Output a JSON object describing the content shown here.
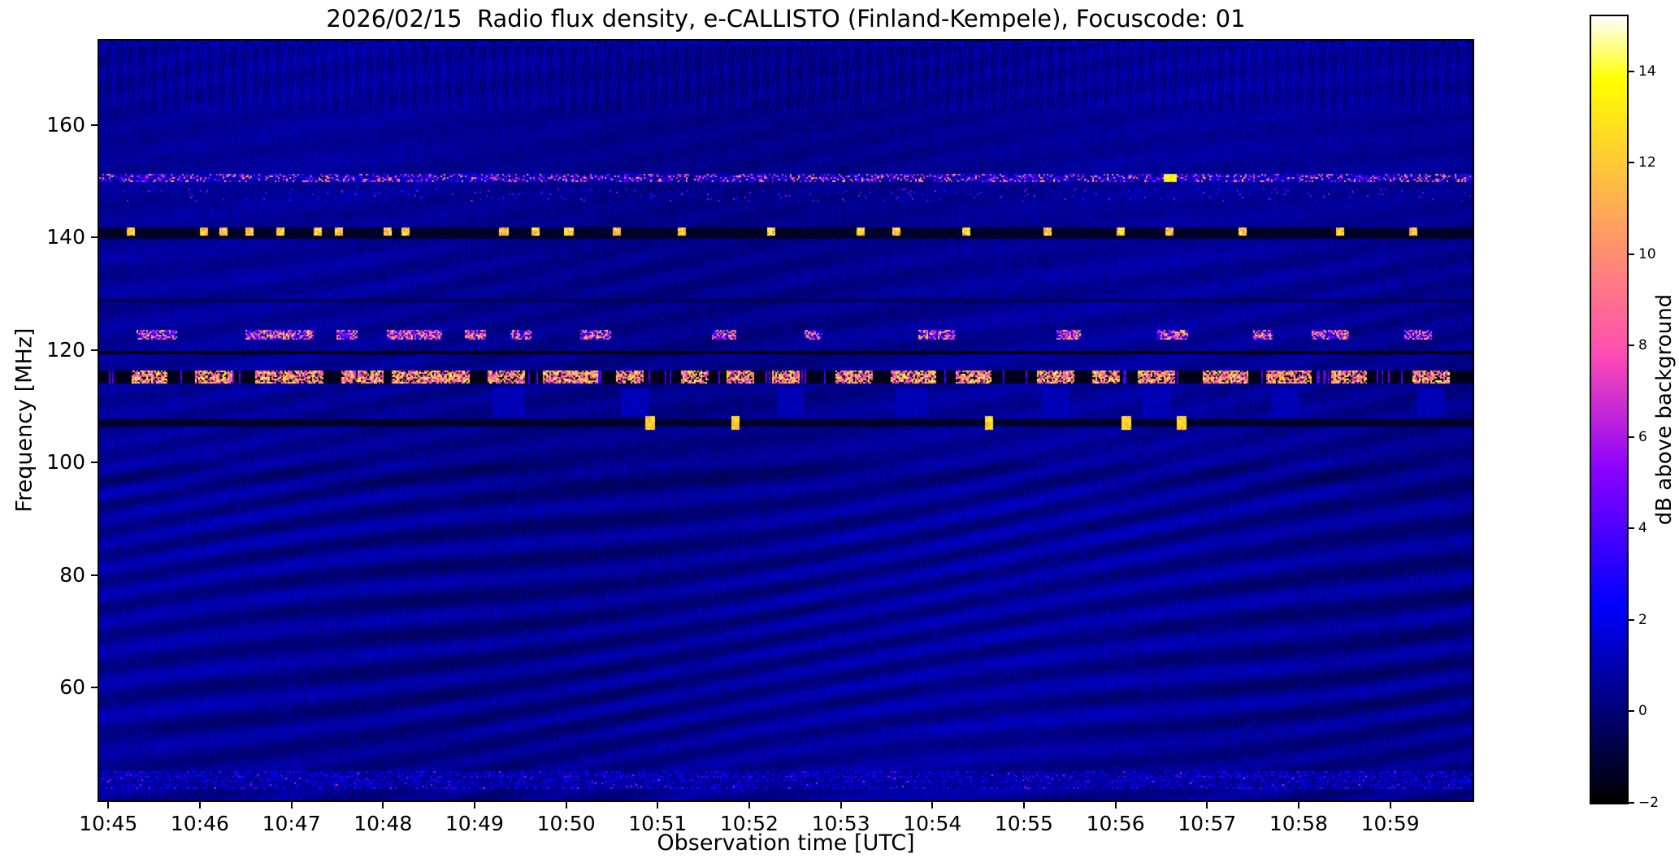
{
  "chart_data": {
    "type": "heatmap",
    "title": "2026/02/15  Radio flux density, e-CALLISTO (Finland-Kempele), Focuscode: 01",
    "xlabel": "Observation time [UTC]",
    "ylabel": "Frequency [MHz]",
    "x_ticks": [
      "10:45",
      "10:46",
      "10:47",
      "10:48",
      "10:49",
      "10:50",
      "10:51",
      "10:52",
      "10:53",
      "10:54",
      "10:55",
      "10:56",
      "10:57",
      "10:58",
      "10:59"
    ],
    "x_tick_minutes": [
      0,
      1,
      2,
      3,
      4,
      5,
      6,
      7,
      8,
      9,
      10,
      11,
      12,
      13,
      14
    ],
    "time_left_offset_min": -0.1,
    "time_span_min": 15.0,
    "y_ticks": [
      160,
      140,
      120,
      100,
      80,
      60
    ],
    "y_range_mhz": [
      40,
      175
    ],
    "grid": false,
    "background_level_db": 0.5,
    "colorbar": {
      "label": "dB above background",
      "ticks": [
        14,
        12,
        10,
        8,
        6,
        4,
        2,
        0,
        -2
      ],
      "range": [
        -2,
        15.2
      ],
      "colormap": "gnuplot2"
    },
    "features": [
      {
        "name": "upper-vertical-striping",
        "freq_mhz": [
          163,
          175
        ],
        "style": "vertical-striping",
        "level_db": [
          0,
          1.5
        ]
      },
      {
        "name": "rfi-line-150mhz",
        "freq_mhz": [
          149.9,
          151.3
        ],
        "style": "dense-speckle",
        "level_db": [
          2,
          12
        ],
        "strong_times_min": [
          11.6
        ]
      },
      {
        "name": "sparse-dots-147mhz",
        "freq_mhz": [
          146.3,
          148.6
        ],
        "style": "sparse-speckle",
        "level_db": [
          2,
          6
        ]
      },
      {
        "name": "dark-band-140mhz",
        "freq_mhz": [
          139.6,
          141.9
        ],
        "style": "dark-band-with-bursts",
        "level_db": -1.3,
        "bursts_min": [
          0.24,
          1.05,
          1.26,
          1.55,
          1.88,
          2.28,
          2.52,
          3.05,
          3.25,
          4.32,
          4.67,
          5.03,
          5.55,
          6.27,
          7.24,
          8.22,
          8.6,
          9.37,
          10.26,
          11.05,
          11.59,
          12.39,
          13.45,
          14.25
        ],
        "burst_level_db": [
          9,
          15
        ]
      },
      {
        "name": "dark-line-129mhz",
        "freq_mhz": [
          128.6,
          129.1
        ],
        "style": "dark-line",
        "level_db": -0.9
      },
      {
        "name": "airband-123mhz",
        "freq_mhz": [
          121.9,
          123.6
        ],
        "style": "burst-segments",
        "segments_min": [
          [
            0.3,
            0.75
          ],
          [
            1.5,
            2.25
          ],
          [
            2.5,
            2.72
          ],
          [
            3.05,
            3.65
          ],
          [
            3.9,
            4.12
          ],
          [
            4.4,
            4.62
          ],
          [
            5.15,
            5.5
          ],
          [
            6.6,
            6.85
          ],
          [
            7.6,
            7.8
          ],
          [
            8.85,
            9.25
          ],
          [
            10.35,
            10.62
          ],
          [
            11.45,
            11.8
          ],
          [
            12.5,
            12.72
          ],
          [
            13.15,
            13.55
          ],
          [
            14.15,
            14.45
          ]
        ],
        "level_db": [
          2,
          13
        ]
      },
      {
        "name": "dark-line-119mhz",
        "freq_mhz": [
          119.1,
          119.8
        ],
        "style": "dark-line",
        "level_db": -1.7
      },
      {
        "name": "broadcast-band-115mhz",
        "freq_mhz": [
          113.9,
          116.3
        ],
        "style": "dark-band-with-bursts",
        "level_db": -1.8,
        "segments_min": [
          [
            0.25,
            0.65
          ],
          [
            0.95,
            1.35
          ],
          [
            1.6,
            2.35
          ],
          [
            2.55,
            3.0
          ],
          [
            3.1,
            3.95
          ],
          [
            4.15,
            4.55
          ],
          [
            4.75,
            5.35
          ],
          [
            5.55,
            5.85
          ],
          [
            6.25,
            6.55
          ],
          [
            6.75,
            7.05
          ],
          [
            7.25,
            7.55
          ],
          [
            7.95,
            8.35
          ],
          [
            8.55,
            9.05
          ],
          [
            9.25,
            9.65
          ],
          [
            10.15,
            10.55
          ],
          [
            10.75,
            11.05
          ],
          [
            11.25,
            11.65
          ],
          [
            11.95,
            12.45
          ],
          [
            12.65,
            13.15
          ],
          [
            13.35,
            13.75
          ],
          [
            14.25,
            14.65
          ]
        ],
        "burst_level_db": [
          6,
          15
        ]
      },
      {
        "name": "block-patches-111mhz",
        "freq_mhz": [
          108.3,
          113.2
        ],
        "style": "soft-blocks",
        "segments_min": [
          [
            4.2,
            4.55
          ],
          [
            5.6,
            5.9
          ],
          [
            7.3,
            7.6
          ],
          [
            8.6,
            8.95
          ],
          [
            10.2,
            10.5
          ],
          [
            11.3,
            11.6
          ],
          [
            12.7,
            13.0
          ],
          [
            14.3,
            14.6
          ]
        ],
        "level_db": [
          1.0,
          2.2
        ]
      },
      {
        "name": "dark-line-107mhz",
        "freq_mhz": [
          106.6,
          107.5
        ],
        "style": "dark-line-with-bursts",
        "level_db": -1.3,
        "bursts_min": [
          5.92,
          6.85,
          9.62,
          11.12,
          11.72
        ],
        "burst_level_db": [
          10,
          14
        ]
      },
      {
        "name": "ripple-interference",
        "freq_mhz": [
          45,
          100
        ],
        "style": "diagonal-ripples",
        "level_db": [
          -0.5,
          1.6
        ]
      },
      {
        "name": "noise-band-bottom",
        "freq_mhz": [
          42,
          45.3
        ],
        "style": "dense-speckle",
        "level_db": [
          0,
          5
        ]
      }
    ]
  }
}
